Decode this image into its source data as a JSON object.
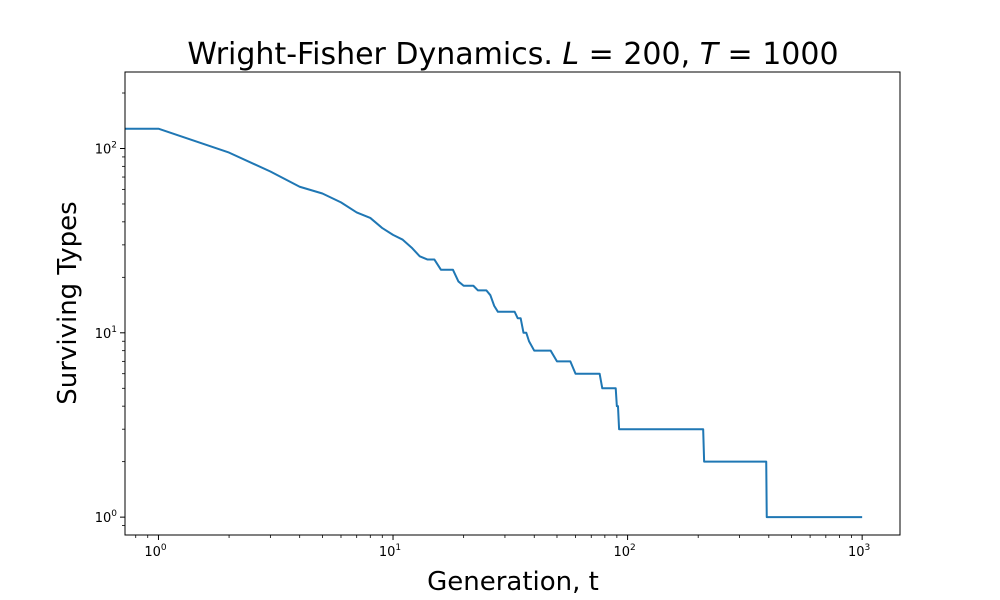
{
  "chart_data": {
    "type": "line",
    "title": "Wright-Fisher Dynamics. L = 200, T = 1000",
    "title_parts": {
      "prefix": "Wright-Fisher Dynamics. ",
      "var1": "L",
      "eq1": " = 200, ",
      "var2": "T",
      "eq2": " = 1000"
    },
    "xlabel": "Generation, t",
    "ylabel": "Surviving Types",
    "xscale": "log",
    "yscale": "log",
    "xlim": [
      0.72,
      1450
    ],
    "ylim": [
      0.8,
      260
    ],
    "grid": false,
    "line_color": "#1f77b4",
    "x_ticks": [
      {
        "value": 1,
        "base": "10",
        "exp": "0"
      },
      {
        "value": 10,
        "base": "10",
        "exp": "1"
      },
      {
        "value": 100,
        "base": "10",
        "exp": "2"
      },
      {
        "value": 1000,
        "base": "10",
        "exp": "3"
      }
    ],
    "y_ticks": [
      {
        "value": 1,
        "base": "10",
        "exp": "0"
      },
      {
        "value": 10,
        "base": "10",
        "exp": "1"
      },
      {
        "value": 100,
        "base": "10",
        "exp": "2"
      }
    ],
    "series": [
      {
        "x": [
          0.7,
          1,
          2,
          3,
          4,
          5,
          6,
          7,
          8,
          9,
          10,
          11,
          12,
          13,
          14,
          15,
          16,
          17,
          18,
          19,
          20,
          21,
          22,
          23,
          24,
          25,
          26,
          27,
          28,
          30,
          32,
          33,
          34,
          35,
          36,
          37,
          38,
          40,
          43,
          45,
          47,
          50,
          53,
          55,
          57,
          60,
          65,
          70,
          76,
          78,
          80,
          85,
          88,
          89,
          90,
          91,
          92,
          95,
          100,
          150,
          200,
          210,
          212,
          300,
          390,
          392,
          500,
          700,
          1000
        ],
        "y": [
          128,
          128,
          95,
          75,
          62,
          57,
          51,
          45,
          42,
          37,
          34,
          32,
          29,
          26,
          25,
          25,
          22,
          22,
          22,
          19,
          18,
          18,
          18,
          17,
          17,
          17,
          16,
          14,
          13,
          13,
          13,
          13,
          12,
          12,
          10,
          10,
          9,
          8,
          8,
          8,
          8,
          7,
          7,
          7,
          7,
          6,
          6,
          6,
          6,
          5,
          5,
          5,
          5,
          5,
          4,
          4,
          3,
          3,
          3,
          3,
          3,
          3,
          2,
          2,
          2,
          1,
          1,
          1,
          1
        ]
      }
    ]
  }
}
